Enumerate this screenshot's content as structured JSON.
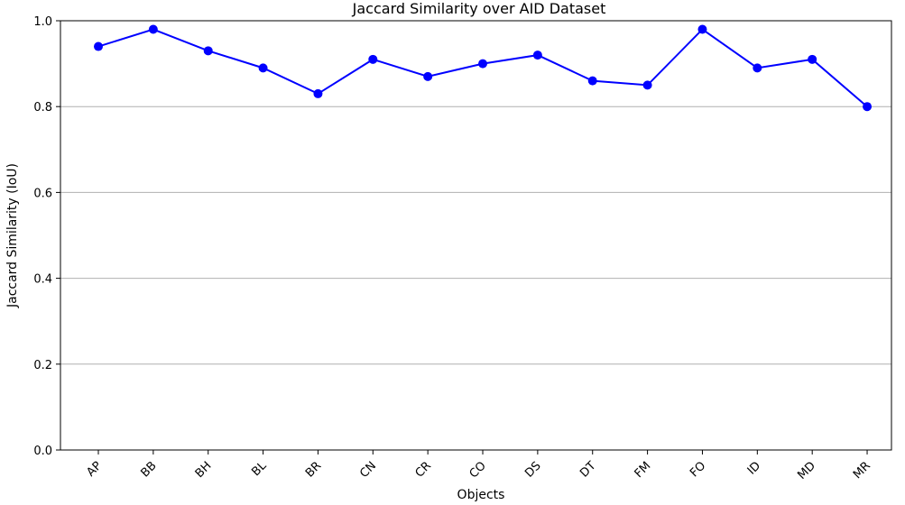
{
  "chart_data": {
    "type": "line",
    "title": "Jaccard Similarity over AID Dataset",
    "xlabel": "Objects",
    "ylabel": "Jaccard Similarity (IoU)",
    "categories": [
      "AP",
      "BB",
      "BH",
      "BL",
      "BR",
      "CN",
      "CR",
      "CO",
      "DS",
      "DT",
      "FM",
      "FO",
      "ID",
      "MD",
      "MR"
    ],
    "values": [
      0.94,
      0.98,
      0.93,
      0.89,
      0.83,
      0.91,
      0.87,
      0.9,
      0.92,
      0.86,
      0.85,
      0.98,
      0.89,
      0.91,
      0.8
    ],
    "ylim": [
      0.0,
      1.0
    ],
    "yticks": [
      "0.0",
      "0.2",
      "0.4",
      "0.6",
      "0.8",
      "1.0"
    ],
    "grid": "horizontal",
    "line_color": "#0000ff",
    "grid_color": "#b0b0b0"
  }
}
